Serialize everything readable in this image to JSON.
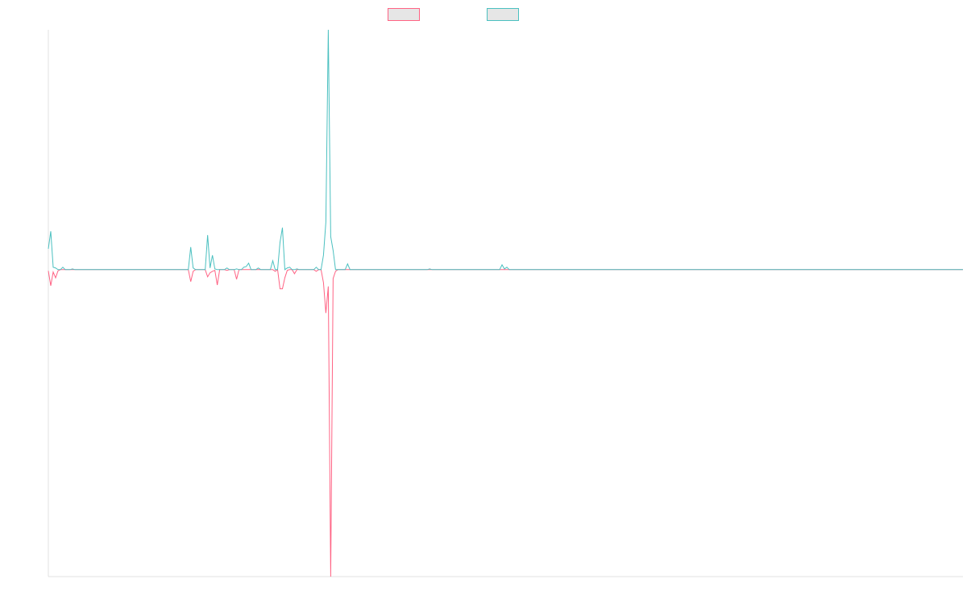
{
  "chart_data": {
    "type": "line",
    "legend": "top",
    "ylim": [
      -1.28,
      1
    ],
    "series": [
      {
        "color": "#ff6384",
        "values": [
          -0.005,
          -0.067,
          -0.01,
          -0.034,
          -0.005,
          0,
          0,
          0,
          0,
          0,
          0,
          0,
          0,
          0,
          0,
          0,
          0,
          0,
          0,
          0,
          0,
          0,
          0,
          0,
          0,
          0,
          0,
          0,
          0,
          0,
          0,
          0,
          0,
          0,
          0,
          0,
          0,
          0,
          0,
          0,
          0,
          0,
          0,
          0,
          0,
          0,
          0,
          0,
          0,
          0,
          0,
          0,
          0,
          0,
          0,
          0,
          0,
          0,
          0,
          -0.05,
          -0.007,
          0,
          0,
          0,
          0,
          0,
          -0.03,
          -0.013,
          -0.007,
          -0.003,
          -0.064,
          0,
          0,
          0,
          -0.003,
          0,
          0,
          0,
          -0.04,
          0,
          0,
          0,
          0,
          0,
          0,
          0,
          0,
          0,
          0,
          0,
          0,
          0,
          0,
          0,
          -0.007,
          0,
          -0.08,
          -0.08,
          -0.034,
          -0.003,
          0,
          0,
          -0.017,
          0,
          0,
          0,
          0,
          0,
          0,
          0,
          0,
          -0.007,
          0,
          0,
          -0.054,
          -0.181,
          -0.07,
          -1.28,
          -0.037,
          -0.007,
          0,
          0,
          0,
          0,
          0,
          0,
          0,
          0,
          0,
          0,
          0,
          0,
          0,
          0,
          0,
          0,
          0,
          0,
          0,
          0,
          0,
          0,
          0,
          0,
          0,
          0,
          0,
          0,
          0,
          0,
          0,
          0,
          0,
          0,
          0,
          0,
          0,
          0,
          0,
          0,
          0,
          0,
          0,
          0,
          0,
          0,
          0,
          0,
          0,
          0,
          0,
          0,
          0,
          0,
          0,
          0,
          0,
          0,
          0,
          0,
          0,
          0,
          0,
          0,
          0,
          0,
          0,
          0,
          0,
          0,
          0,
          0,
          0,
          0,
          0,
          0,
          0,
          0,
          0,
          0,
          0,
          0,
          0,
          0,
          0,
          0,
          0,
          0,
          0,
          0,
          0,
          0,
          0,
          0,
          0,
          0,
          0,
          0,
          0,
          0,
          0,
          0,
          0,
          0,
          0,
          0,
          0,
          0,
          0,
          0,
          0,
          0,
          0,
          0,
          0,
          0,
          0,
          0,
          0,
          0,
          0,
          0,
          0,
          0,
          0,
          0,
          0,
          0,
          0,
          0,
          0,
          0,
          0,
          0,
          0,
          0,
          0,
          0,
          0,
          0,
          0,
          0,
          0,
          0,
          0,
          0,
          0,
          0,
          0,
          0,
          0,
          0,
          0,
          0,
          0,
          0,
          0,
          0,
          0,
          0,
          0,
          0,
          0,
          0,
          0,
          0,
          0,
          0,
          0,
          0,
          0,
          0,
          0,
          0,
          0,
          0,
          0,
          0,
          0,
          0,
          0,
          0,
          0,
          0,
          0,
          0,
          0,
          0,
          0,
          0,
          0,
          0,
          0,
          0,
          0,
          0,
          0,
          0,
          0,
          0,
          0,
          0,
          0,
          0,
          0,
          0,
          0,
          0,
          0,
          0,
          0,
          0,
          0,
          0,
          0,
          0,
          0,
          0,
          0,
          0,
          0,
          0,
          0,
          0,
          0,
          0,
          0,
          0,
          0,
          0,
          0,
          0,
          0,
          0,
          0,
          0,
          0,
          0,
          0,
          0,
          0,
          0,
          0,
          0,
          0,
          0,
          0,
          0,
          0,
          0,
          0,
          0,
          0,
          0,
          0,
          0,
          0,
          0,
          0,
          0
        ]
      },
      {
        "color": "#4bc0c0",
        "values": [
          0.087,
          0.16,
          0.01,
          0.007,
          0,
          0,
          0.01,
          0,
          0,
          0,
          0.003,
          0,
          0,
          0,
          0,
          0,
          0,
          0,
          0,
          0,
          0,
          0,
          0,
          0,
          0,
          0,
          0,
          0,
          0,
          0,
          0,
          0,
          0,
          0,
          0,
          0,
          0,
          0,
          0,
          0,
          0,
          0,
          0,
          0,
          0,
          0,
          0,
          0,
          0,
          0,
          0,
          0,
          0,
          0,
          0,
          0,
          0,
          0,
          0,
          0.094,
          0.007,
          0,
          0,
          0,
          0,
          0,
          0.144,
          0.007,
          0.06,
          0.003,
          0,
          0,
          0,
          0,
          0.007,
          0,
          0,
          0,
          0.003,
          0,
          0,
          0.01,
          0.013,
          0.027,
          0,
          0,
          0,
          0.007,
          0,
          0,
          0,
          0,
          0,
          0.037,
          0,
          0,
          0.114,
          0.175,
          0,
          0.007,
          0.01,
          0,
          0,
          0.003,
          0,
          0,
          0,
          0,
          0,
          0,
          0,
          0.01,
          0,
          0,
          0.06,
          0.198,
          1,
          0.138,
          0.08,
          0,
          0,
          0,
          0,
          0,
          0.024,
          0,
          0,
          0,
          0,
          0,
          0,
          0,
          0,
          0,
          0,
          0,
          0,
          0,
          0,
          0,
          0,
          0,
          0,
          0,
          0,
          0,
          0,
          0,
          0,
          0,
          0,
          0,
          0,
          0,
          0,
          0,
          0,
          0,
          0.003,
          0,
          0,
          0,
          0,
          0,
          0,
          0,
          0,
          0,
          0,
          0,
          0,
          0,
          0,
          0,
          0,
          0,
          0,
          0,
          0,
          0,
          0,
          0,
          0,
          0,
          0,
          0,
          0,
          0,
          0.02,
          0.003,
          0.01,
          0,
          0,
          0,
          0,
          0,
          0,
          0,
          0,
          0,
          0,
          0,
          0,
          0,
          0,
          0,
          0,
          0,
          0,
          0,
          0,
          0,
          0,
          0,
          0,
          0,
          0,
          0,
          0,
          0,
          0,
          0,
          0,
          0,
          0,
          0,
          0,
          0,
          0,
          0,
          0,
          0,
          0,
          0,
          0,
          0,
          0,
          0,
          0,
          0,
          0,
          0,
          0,
          0,
          0,
          0,
          0,
          0,
          0,
          0,
          0,
          0,
          0,
          0,
          0,
          0,
          0,
          0,
          0,
          0,
          0,
          0,
          0,
          0,
          0,
          0,
          0,
          0,
          0,
          0,
          0,
          0,
          0,
          0,
          0,
          0,
          0,
          0,
          0,
          0,
          0,
          0,
          0,
          0,
          0,
          0,
          0,
          0,
          0,
          0,
          0,
          0,
          0,
          0,
          0,
          0,
          0,
          0,
          0,
          0,
          0,
          0,
          0,
          0,
          0,
          0,
          0,
          0,
          0,
          0,
          0,
          0,
          0,
          0,
          0,
          0,
          0,
          0,
          0,
          0,
          0,
          0,
          0,
          0,
          0,
          0,
          0,
          0,
          0,
          0,
          0,
          0,
          0,
          0,
          0,
          0,
          0,
          0,
          0,
          0,
          0,
          0,
          0,
          0,
          0,
          0,
          0,
          0,
          0,
          0,
          0,
          0,
          0,
          0,
          0,
          0,
          0,
          0,
          0,
          0,
          0,
          0,
          0,
          0,
          0,
          0,
          0,
          0,
          0,
          0,
          0,
          0,
          0,
          0,
          0,
          0,
          0,
          0,
          0,
          0
        ]
      }
    ]
  }
}
